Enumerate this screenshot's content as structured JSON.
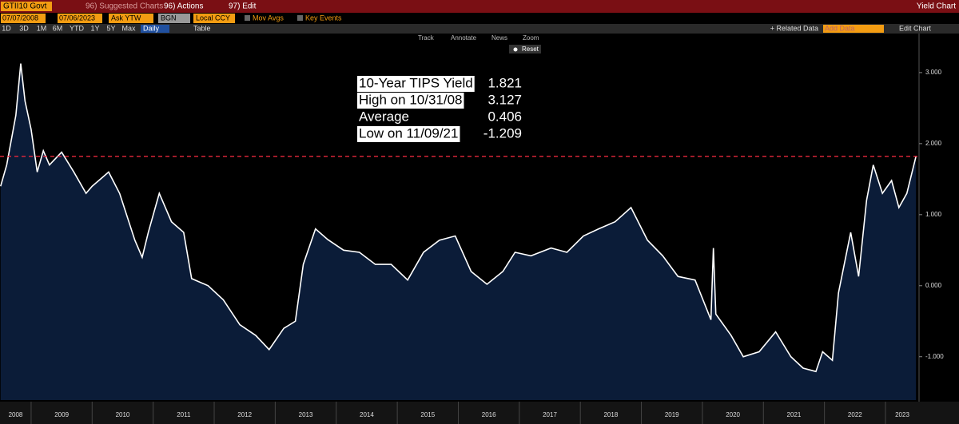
{
  "toolbar": {
    "security": "GTII10 Govt",
    "suggested": "96) Suggested Charts",
    "actions": "96) Actions",
    "edit": "97) Edit",
    "window_title": "Yield Chart",
    "start_date": "07/07/2008",
    "end_date": "07/06/2023",
    "field": "Ask YTW",
    "source": "BGN",
    "currency": "Local CCY",
    "mov_avgs": "Mov Avgs",
    "key_events": "Key Events",
    "periods": [
      "1D",
      "3D",
      "1M",
      "6M",
      "YTD",
      "1Y",
      "5Y",
      "Max"
    ],
    "frequency": "Daily",
    "table": "Table",
    "related_data": "+ Related Data",
    "add_data": "Add Data",
    "edit_chart": "Edit Chart",
    "tools": [
      "Track",
      "Annotate",
      "News",
      "Zoom"
    ],
    "reset": "Reset"
  },
  "chart_data": {
    "type": "area",
    "color": "#ffffff",
    "fill": "#0b1c38",
    "x": [
      2008.5,
      2008.6,
      2008.75,
      2008.83,
      2008.9,
      2009.0,
      2009.1,
      2009.2,
      2009.3,
      2009.5,
      2009.7,
      2009.9,
      2010.0,
      2010.27,
      2010.45,
      2010.7,
      2010.82,
      2010.92,
      2011.1,
      2011.3,
      2011.5,
      2011.63,
      2011.9,
      2012.15,
      2012.42,
      2012.68,
      2012.9,
      2013.14,
      2013.33,
      2013.46,
      2013.66,
      2013.86,
      2014.12,
      2014.38,
      2014.64,
      2014.9,
      2015.17,
      2015.43,
      2015.69,
      2015.95,
      2016.21,
      2016.47,
      2016.73,
      2016.93,
      2017.19,
      2017.52,
      2017.78,
      2018.05,
      2018.3,
      2018.57,
      2018.83,
      2019.1,
      2019.35,
      2019.6,
      2019.88,
      2020.14,
      2020.18,
      2020.22,
      2020.47,
      2020.67,
      2020.93,
      2021.2,
      2021.45,
      2021.65,
      2021.86,
      2021.97,
      2022.13,
      2022.23,
      2022.43,
      2022.56,
      2022.69,
      2022.8,
      2022.95,
      2023.1,
      2023.22,
      2023.35,
      2023.5
    ],
    "values": [
      1.4,
      1.7,
      2.4,
      3.127,
      2.6,
      2.2,
      1.6,
      1.9,
      1.7,
      1.88,
      1.6,
      1.3,
      1.4,
      1.6,
      1.3,
      0.64,
      0.4,
      0.75,
      1.3,
      0.9,
      0.75,
      0.1,
      0.0,
      -0.2,
      -0.55,
      -0.7,
      -0.9,
      -0.6,
      -0.5,
      0.3,
      0.8,
      0.65,
      0.5,
      0.47,
      0.3,
      0.3,
      0.08,
      0.47,
      0.64,
      0.7,
      0.2,
      0.02,
      0.2,
      0.47,
      0.42,
      0.53,
      0.47,
      0.7,
      0.8,
      0.9,
      1.1,
      0.64,
      0.42,
      0.13,
      0.08,
      -0.48,
      0.53,
      -0.4,
      -0.7,
      -1.0,
      -0.93,
      -0.65,
      -1.0,
      -1.16,
      -1.209,
      -0.93,
      -1.05,
      -0.1,
      0.75,
      0.13,
      1.2,
      1.7,
      1.3,
      1.48,
      1.1,
      1.3,
      1.821
    ],
    "xlim": [
      2008.49,
      2023.55
    ],
    "xticks": [
      2009,
      2010,
      2011,
      2012,
      2013,
      2014,
      2015,
      2016,
      2017,
      2018,
      2019,
      2020,
      2021,
      2022,
      2023
    ],
    "x_labels": [
      "2008",
      "2009",
      "2010",
      "2011",
      "2012",
      "2013",
      "2014",
      "2015",
      "2016",
      "2017",
      "2018",
      "2019",
      "2020",
      "2021",
      "2022",
      "2023"
    ],
    "ylim": [
      -1.61,
      3.46
    ],
    "yticks": [
      {
        "value": -1,
        "label": "-1.000"
      },
      {
        "value": 0,
        "label": "0.000"
      },
      {
        "value": 1,
        "label": "1.000"
      },
      {
        "value": 2,
        "label": "2.000"
      },
      {
        "value": 3,
        "label": "3.000"
      }
    ],
    "reference_line_color": "#e8283c",
    "legend": [
      {
        "label": "10-Year TIPS Yield",
        "value": 1.821
      },
      {
        "label": "High on 10/31/08",
        "value": 3.127
      },
      {
        "label": "Average",
        "value": 0.406
      },
      {
        "label": "Low on 11/09/21",
        "value": -1.209
      }
    ]
  }
}
